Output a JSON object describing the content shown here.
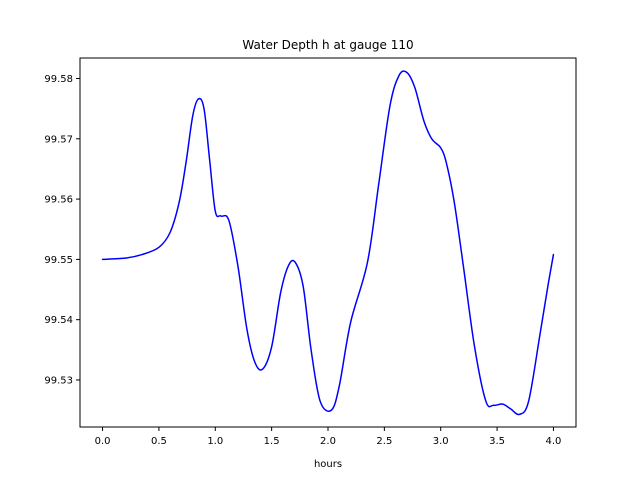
{
  "chart_data": {
    "type": "line",
    "title": "Water Depth h at gauge 110",
    "xlabel": "hours",
    "ylabel": "",
    "xlim": [
      -0.2,
      4.2
    ],
    "ylim": [
      99.5222,
      99.5834
    ],
    "xticks": [
      0.0,
      0.5,
      1.0,
      1.5,
      2.0,
      2.5,
      3.0,
      3.5,
      4.0
    ],
    "xtick_labels": [
      "0.0",
      "0.5",
      "1.0",
      "1.5",
      "2.0",
      "2.5",
      "3.0",
      "3.5",
      "4.0"
    ],
    "yticks": [
      99.53,
      99.54,
      99.55,
      99.56,
      99.57,
      99.58
    ],
    "ytick_labels": [
      "99.53",
      "99.54",
      "99.55",
      "99.56",
      "99.57",
      "99.58"
    ],
    "grid": false,
    "legend": "none",
    "series": [
      {
        "color": "#0000ff",
        "x": [
          0.0,
          0.2,
          0.35,
          0.5,
          0.6,
          0.68,
          0.74,
          0.8,
          0.85,
          0.9,
          0.95,
          1.0,
          1.05,
          1.12,
          1.2,
          1.28,
          1.35,
          1.42,
          1.5,
          1.58,
          1.65,
          1.71,
          1.78,
          1.85,
          1.93,
          2.03,
          2.1,
          2.2,
          2.35,
          2.45,
          2.55,
          2.63,
          2.7,
          2.77,
          2.85,
          2.92,
          3.0,
          3.05,
          3.12,
          3.2,
          3.3,
          3.4,
          3.47,
          3.55,
          3.62,
          3.7,
          3.78,
          3.88,
          3.95,
          4.0
        ],
        "y": [
          99.55,
          99.5502,
          99.5508,
          99.552,
          99.5545,
          99.5595,
          99.566,
          99.5738,
          99.5766,
          99.575,
          99.5665,
          99.558,
          99.5572,
          99.5565,
          99.549,
          99.5385,
          99.533,
          99.5318,
          99.5355,
          99.5445,
          99.549,
          99.5495,
          99.5455,
          99.535,
          99.5265,
          99.525,
          99.529,
          99.5395,
          99.5495,
          99.5625,
          99.5755,
          99.5805,
          99.581,
          99.5785,
          99.573,
          99.57,
          99.5685,
          99.566,
          99.5595,
          99.549,
          99.5355,
          99.5265,
          99.5258,
          99.526,
          99.5252,
          99.5243,
          99.5265,
          99.5375,
          99.5455,
          99.5508
        ]
      }
    ]
  }
}
